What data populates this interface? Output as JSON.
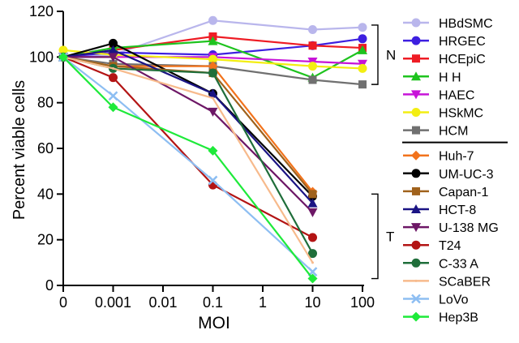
{
  "chart_data": {
    "type": "line",
    "title": "",
    "xlabel": "MOI",
    "ylabel": "Percent viable cells",
    "x": [
      "0",
      "0.001",
      "0.01",
      "0.1",
      "1",
      "10",
      "100"
    ],
    "yticks": [
      0,
      20,
      40,
      60,
      80,
      100,
      120
    ],
    "ylim": [
      0,
      120
    ],
    "grid": false,
    "legend_position": "right",
    "groups": [
      {
        "label": "N",
        "series": [
          "HBdSMC",
          "HRGEC",
          "HCEpiC",
          "H H",
          "HAEC",
          "HSkMC",
          "HCM"
        ]
      },
      {
        "label": "T",
        "series": [
          "Huh-7",
          "UM-UC-3",
          "Capan-1",
          "HCT-8",
          "U-138 MG",
          "T24",
          "C-33 A",
          "SCaBER",
          "LoVo",
          "Hep3B"
        ]
      }
    ],
    "series": [
      {
        "name": "HBdSMC",
        "color": "#b9b6ec",
        "marker": "circle",
        "points": [
          [
            0,
            100
          ],
          [
            0.001,
            101
          ],
          [
            0.1,
            116
          ],
          [
            10,
            112
          ],
          [
            100,
            113
          ]
        ]
      },
      {
        "name": "HRGEC",
        "color": "#3d1fe0",
        "marker": "circle",
        "points": [
          [
            0,
            100
          ],
          [
            0.001,
            102
          ],
          [
            0.1,
            101
          ],
          [
            10,
            105
          ],
          [
            100,
            108
          ]
        ]
      },
      {
        "name": "HCEpiC",
        "color": "#ee1c24",
        "marker": "square",
        "points": [
          [
            0,
            100
          ],
          [
            0.001,
            103
          ],
          [
            0.1,
            109
          ],
          [
            10,
            105
          ],
          [
            100,
            104
          ]
        ]
      },
      {
        "name": "H H",
        "color": "#1ec31e",
        "marker": "triangle",
        "points": [
          [
            0,
            100
          ],
          [
            0.001,
            104
          ],
          [
            0.1,
            107
          ],
          [
            10,
            91
          ],
          [
            100,
            103
          ]
        ]
      },
      {
        "name": "HAEC",
        "color": "#c714d8",
        "marker": "tri-down",
        "points": [
          [
            0,
            100
          ],
          [
            0.001,
            100
          ],
          [
            0.1,
            100
          ],
          [
            10,
            98
          ],
          [
            100,
            97
          ]
        ]
      },
      {
        "name": "HSkMC",
        "color": "#f3ee12",
        "marker": "circle",
        "points": [
          [
            0,
            103
          ],
          [
            0.001,
            101
          ],
          [
            0.1,
            99
          ],
          [
            10,
            96
          ],
          [
            100,
            95
          ]
        ]
      },
      {
        "name": "HCM",
        "color": "#707070",
        "marker": "square",
        "points": [
          [
            0,
            100
          ],
          [
            0.001,
            97
          ],
          [
            0.1,
            96
          ],
          [
            10,
            90
          ],
          [
            100,
            88
          ]
        ]
      },
      {
        "name": "Huh-7",
        "color": "#f2731c",
        "marker": "diamond",
        "points": [
          [
            0,
            100
          ],
          [
            0.001,
            96
          ],
          [
            0.1,
            96
          ],
          [
            10,
            41
          ]
        ]
      },
      {
        "name": "UM-UC-3",
        "color": "#000000",
        "marker": "circle",
        "points": [
          [
            0,
            100
          ],
          [
            0.001,
            106
          ],
          [
            0.1,
            84
          ],
          [
            10,
            39
          ]
        ]
      },
      {
        "name": "Capan-1",
        "color": "#a0621c",
        "marker": "square",
        "points": [
          [
            0,
            100
          ],
          [
            0.001,
            96
          ],
          [
            0.1,
            93
          ],
          [
            10,
            40
          ]
        ]
      },
      {
        "name": "HCT-8",
        "color": "#1b1484",
        "marker": "triangle",
        "points": [
          [
            0,
            100
          ],
          [
            0.001,
            103
          ],
          [
            0.1,
            84
          ],
          [
            10,
            36
          ]
        ]
      },
      {
        "name": "U-138 MG",
        "color": "#6d1766",
        "marker": "tri-down",
        "points": [
          [
            0,
            100
          ],
          [
            0.001,
            100
          ],
          [
            0.1,
            76
          ],
          [
            10,
            32
          ]
        ]
      },
      {
        "name": "T24",
        "color": "#b31414",
        "marker": "circle",
        "points": [
          [
            0,
            100
          ],
          [
            0.001,
            91
          ],
          [
            0.1,
            44
          ],
          [
            10,
            21
          ]
        ]
      },
      {
        "name": "C-33 A",
        "color": "#1f6e3a",
        "marker": "circle",
        "points": [
          [
            0,
            100
          ],
          [
            0.001,
            95
          ],
          [
            0.1,
            93
          ],
          [
            10,
            14
          ]
        ]
      },
      {
        "name": "SCaBER",
        "color": "#f7ba8c",
        "marker": "none",
        "points": [
          [
            0,
            100
          ],
          [
            0.001,
            95
          ],
          [
            0.1,
            82
          ],
          [
            10,
            10
          ]
        ]
      },
      {
        "name": "LoVo",
        "color": "#8dbef2",
        "marker": "cross",
        "points": [
          [
            0,
            100
          ],
          [
            0.001,
            83
          ],
          [
            0.1,
            46
          ],
          [
            10,
            6
          ]
        ]
      },
      {
        "name": "Hep3B",
        "color": "#1eea3a",
        "marker": "diamond",
        "points": [
          [
            0,
            100
          ],
          [
            0.001,
            78
          ],
          [
            0.1,
            59
          ],
          [
            10,
            3
          ]
        ]
      }
    ]
  }
}
